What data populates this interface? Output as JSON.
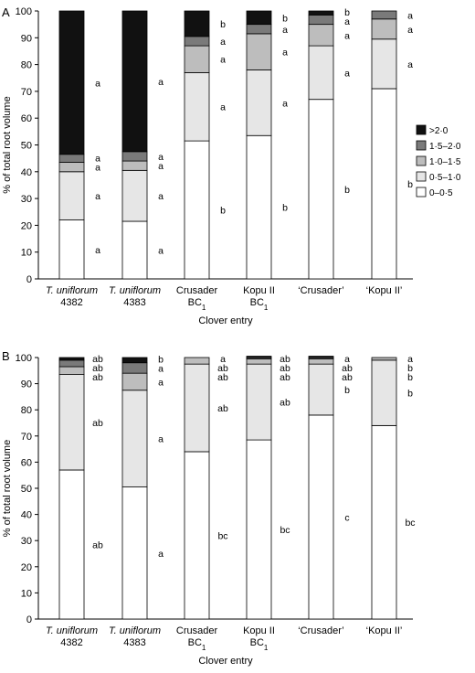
{
  "colors": {
    "0-0.5": "#ffffff",
    "0.5-1.0": "#e6e6e6",
    "1.0-1.5": "#bdbdbd",
    "1.5-2.0": "#7a7a7a",
    ">2.0": "#111111"
  },
  "legend": {
    "items": [
      {
        "key": ">2.0",
        "label": ">2·0"
      },
      {
        "key": "1.5-2.0",
        "label": "1·5–2·0"
      },
      {
        "key": "1.0-1.5",
        "label": "1·0–1·5"
      },
      {
        "key": "0.5-1.0",
        "label": "0·5–1·0"
      },
      {
        "key": "0-0.5",
        "label": "0–0·5"
      }
    ]
  },
  "chart_data": [
    {
      "type": "bar",
      "stacked": true,
      "panel_label": "A",
      "ylabel": "% of total root volume",
      "xlabel": "Clover entry",
      "ylim": [
        0,
        100
      ],
      "yticks": [
        0,
        10,
        20,
        30,
        40,
        50,
        60,
        70,
        80,
        90,
        100
      ],
      "categories": [
        {
          "line1": "T. uniflorum",
          "line1_italic": true,
          "line2": "4382",
          "sub": ""
        },
        {
          "line1": "T. uniflorum",
          "line1_italic": true,
          "line2": "4383",
          "sub": ""
        },
        {
          "line1": "Crusader",
          "line1_italic": false,
          "line2": "BC",
          "sub": "1"
        },
        {
          "line1": "Kopu II",
          "line1_italic": false,
          "line2": "BC",
          "sub": "1"
        },
        {
          "line1": "‘Crusader’",
          "line1_italic": false,
          "line2": "",
          "sub": ""
        },
        {
          "line1": "‘Kopu II’",
          "line1_italic": false,
          "line2": "",
          "sub": ""
        }
      ],
      "series": [
        {
          "key": "0-0.5",
          "values": [
            22,
            21.5,
            51.5,
            53.5,
            67,
            71
          ],
          "letters": [
            "a",
            "a",
            "b",
            "b",
            "b",
            "b"
          ]
        },
        {
          "key": "0.5-1.0",
          "values": [
            18,
            19,
            25.5,
            24.5,
            20,
            18.5
          ],
          "letters": [
            "a",
            "a",
            "a",
            "a",
            "a",
            "a"
          ]
        },
        {
          "key": "1.0-1.5",
          "values": [
            3.5,
            3.5,
            10,
            13.5,
            8,
            7.5
          ],
          "letters": [
            "a",
            "a",
            "a",
            "a",
            "a",
            "a"
          ]
        },
        {
          "key": "1.5-2.0",
          "values": [
            3,
            3.5,
            3.5,
            3.5,
            3.5,
            3
          ],
          "letters": [
            "a",
            "a",
            "a",
            "a",
            "a",
            "a"
          ]
        },
        {
          ">2.0_note": "",
          "key": ">2.0",
          "values": [
            53.5,
            52.5,
            9.5,
            5,
            1.5,
            0
          ],
          "letters": [
            "a",
            "a",
            "b",
            "b",
            "b",
            ""
          ]
        }
      ]
    },
    {
      "type": "bar",
      "stacked": true,
      "panel_label": "B",
      "ylabel": "% of total root volume",
      "xlabel": "Clover entry",
      "ylim": [
        0,
        100
      ],
      "yticks": [
        0,
        10,
        20,
        30,
        40,
        50,
        60,
        70,
        80,
        90,
        100
      ],
      "categories": [
        {
          "line1": "T. uniflorum",
          "line1_italic": true,
          "line2": "4382",
          "sub": ""
        },
        {
          "line1": "T. uniflorum",
          "line1_italic": true,
          "line2": "4383",
          "sub": ""
        },
        {
          "line1": "Crusader",
          "line1_italic": false,
          "line2": "BC",
          "sub": "1"
        },
        {
          "line1": "Kopu II",
          "line1_italic": false,
          "line2": "BC",
          "sub": "1"
        },
        {
          "line1": "‘Crusader’",
          "line1_italic": false,
          "line2": "",
          "sub": ""
        },
        {
          "line1": "‘Kopu II’",
          "line1_italic": false,
          "line2": "",
          "sub": ""
        }
      ],
      "series": [
        {
          "key": "0-0.5",
          "values": [
            57,
            50.5,
            64,
            68.5,
            78,
            74
          ],
          "letters": [
            "ab",
            "a",
            "bc",
            "bc",
            "c",
            "bc"
          ]
        },
        {
          "key": "0.5-1.0",
          "values": [
            36.5,
            37,
            33.5,
            29,
            19.5,
            25
          ],
          "letters": [
            "ab",
            "a",
            "ab",
            "ab",
            "b",
            "b"
          ]
        },
        {
          "key": "1.0-1.5",
          "values": [
            3,
            6.5,
            2.5,
            2,
            2,
            1
          ],
          "letters": [
            "ab",
            "a",
            "ab",
            "ab",
            "ab",
            "b"
          ]
        },
        {
          "key": "1.5-2.0",
          "values": [
            2.5,
            4,
            0,
            0.5,
            0.5,
            0
          ],
          "letters": [
            "ab",
            "a",
            "ab",
            "ab",
            "ab",
            "b"
          ]
        },
        {
          "key": ">2.0",
          "values": [
            1,
            2,
            0,
            0.5,
            0.5,
            0
          ],
          "letters": [
            "ab",
            "b",
            "a",
            "ab",
            "a",
            "a"
          ]
        }
      ]
    }
  ]
}
